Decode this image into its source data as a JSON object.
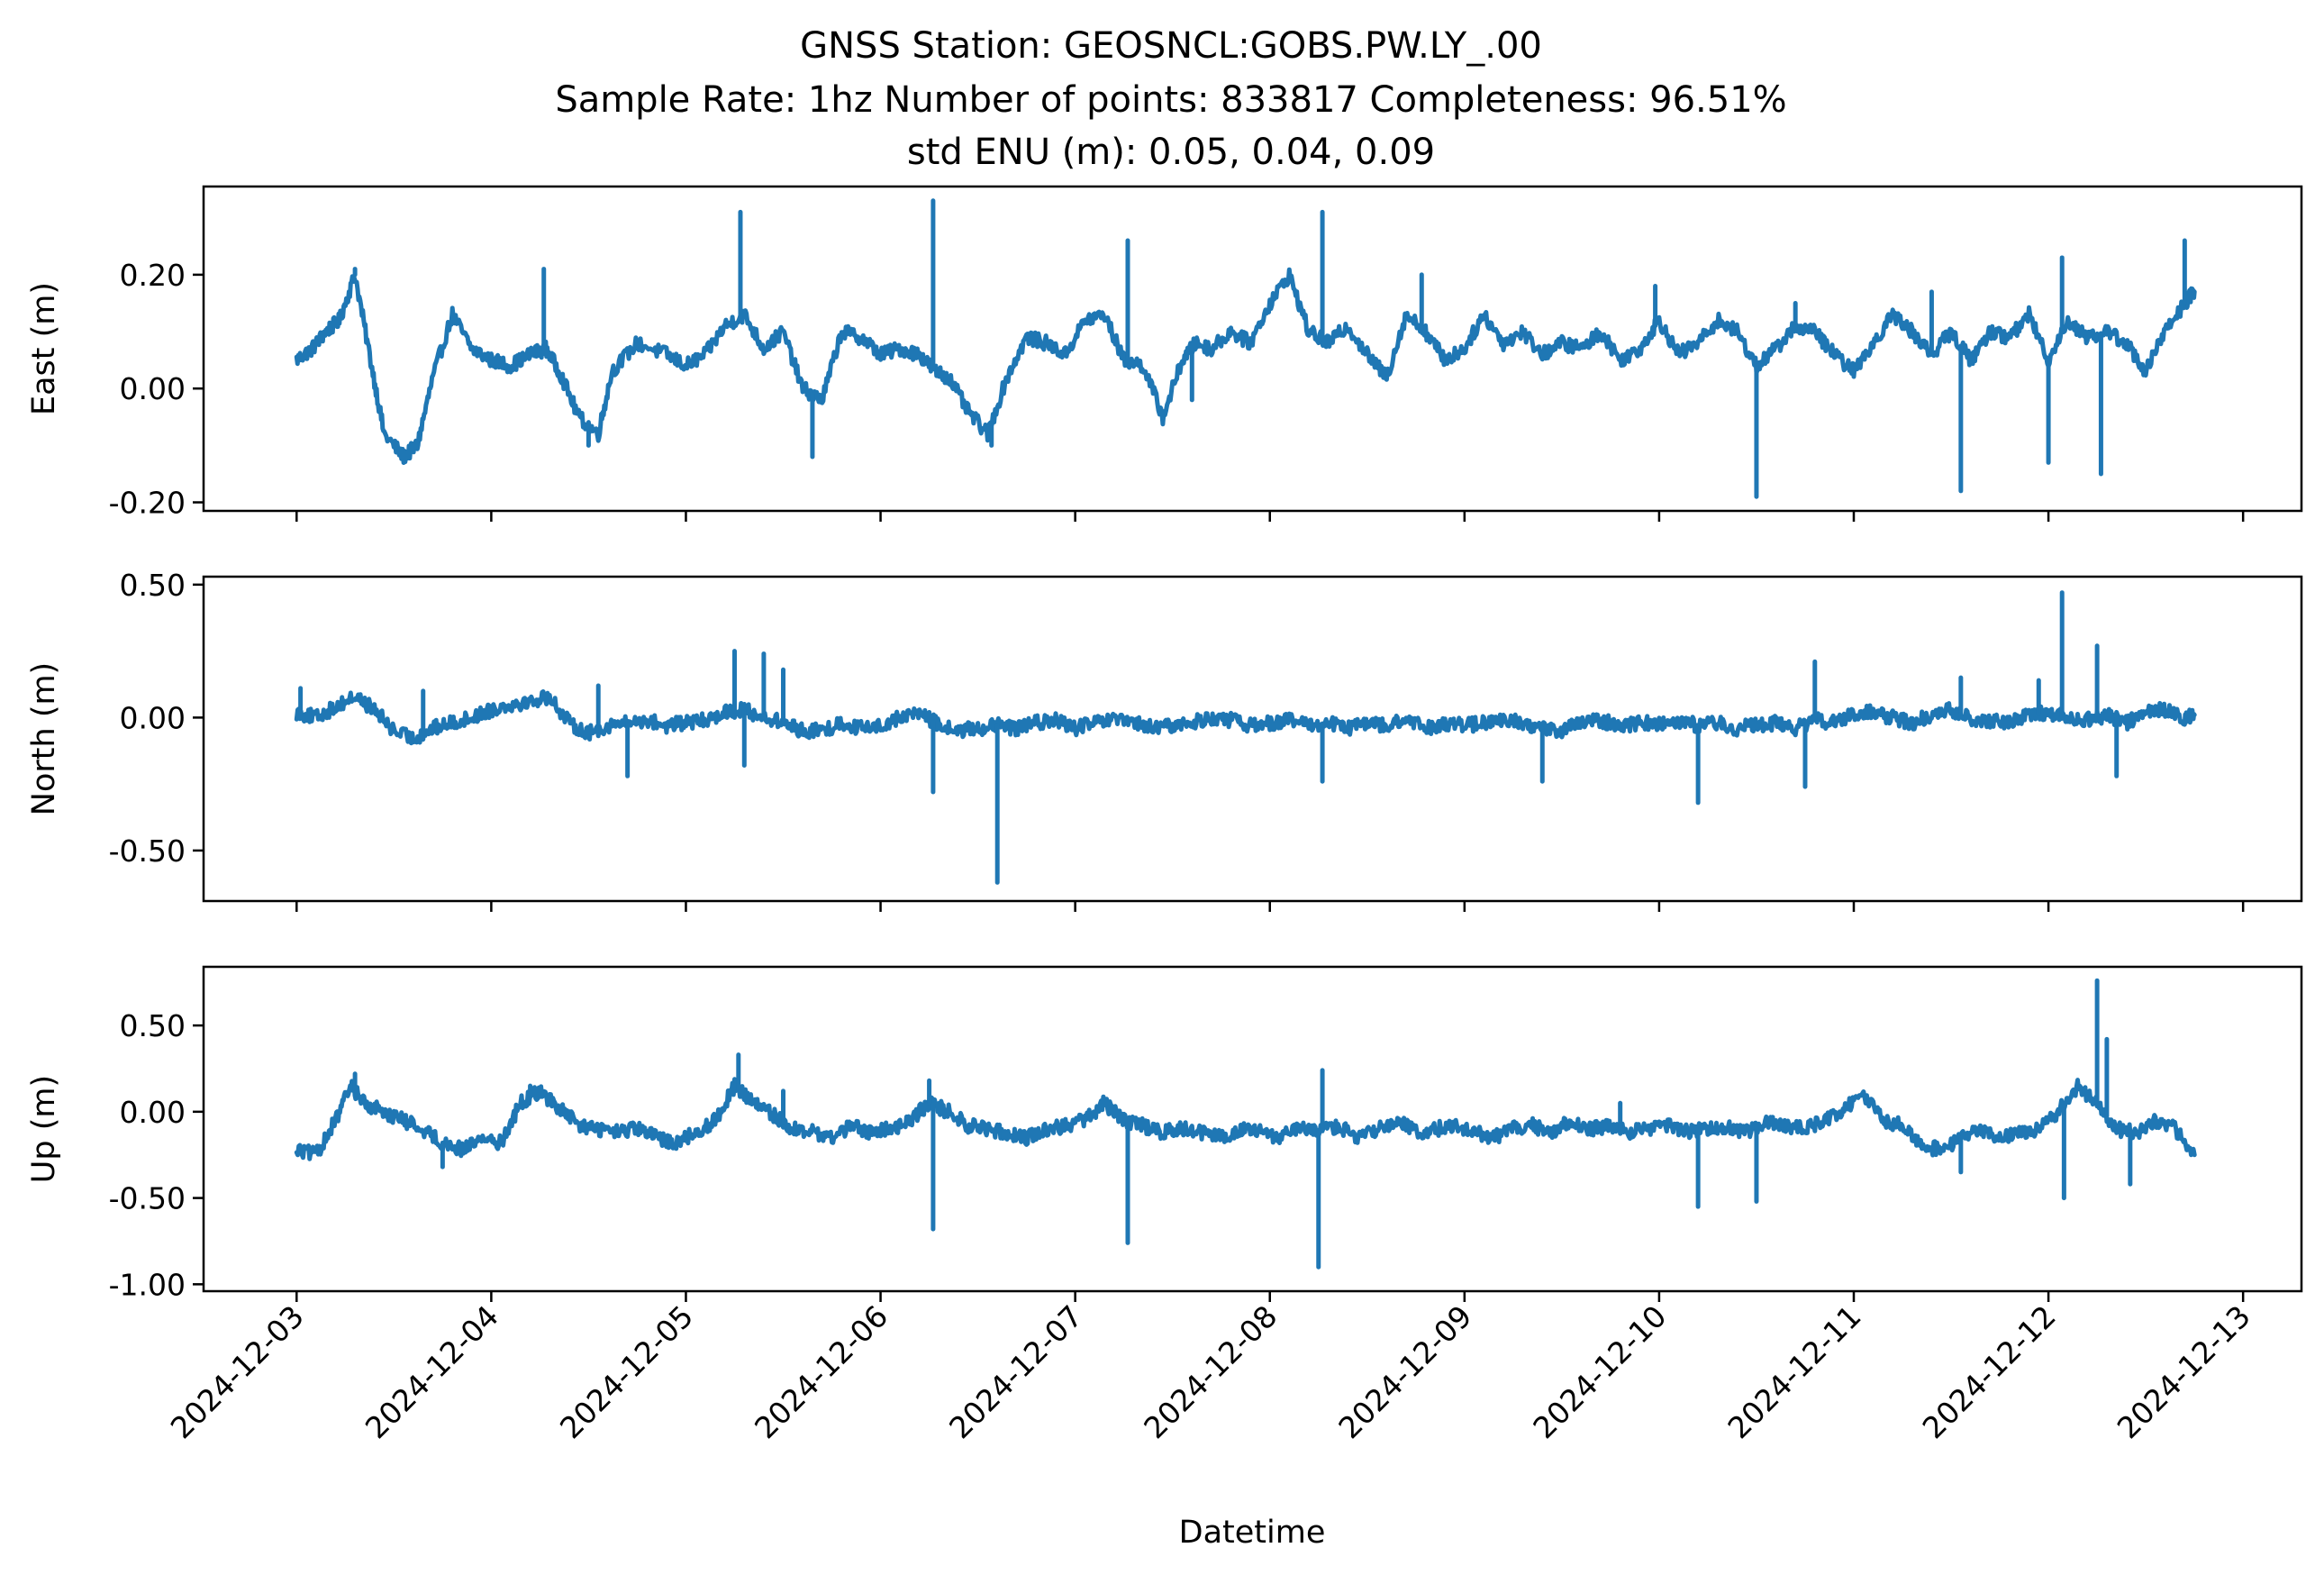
{
  "title_lines": [
    "GNSS Station: GEOSNCL:GOBS.PW.LY_.00",
    "Sample Rate: 1hz   Number of points: 833817    Completeness:  96.51%",
    "std ENU (m):  0.05, 0.04, 0.09"
  ],
  "colors": {
    "series": "#1f77b4",
    "axes": "#000000",
    "background": "#ffffff"
  },
  "chart_data": {
    "type": "line",
    "xlabel": "Datetime",
    "x_ticks": [
      "2024-12-03",
      "2024-12-04",
      "2024-12-05",
      "2024-12-06",
      "2024-12-07",
      "2024-12-08",
      "2024-12-09",
      "2024-12-10",
      "2024-12-11",
      "2024-12-12",
      "2024-12-13"
    ],
    "x_range": [
      "2024-12-02 12:32",
      "2024-12-13 07:12"
    ],
    "x_unit": "days since 2024-12-03 00:00",
    "grid": false,
    "panels": [
      {
        "ylabel": "East (m)",
        "ylim": [
          -0.215,
          0.355
        ],
        "yticks": [
          -0.2,
          0.0,
          0.2
        ],
        "ytick_labels": [
          "-0.20",
          "0.00",
          "0.20"
        ],
        "x_ticks_labeled": false,
        "series": [
          {
            "x": [
              0.0,
              0.08,
              0.15,
              0.22,
              0.3,
              0.38,
              0.45,
              0.55,
              0.62,
              0.7,
              0.8,
              0.9,
              1.0,
              1.1,
              1.2,
              1.28,
              1.35,
              1.45,
              1.55,
              1.62,
              1.75,
              1.9,
              2.0,
              2.1,
              2.2,
              2.3,
              2.4,
              2.5,
              2.6,
              2.7,
              2.8,
              2.9,
              3.0,
              3.1,
              3.2,
              3.28,
              3.35,
              3.45,
              3.55,
              3.65,
              3.75,
              3.85,
              3.95,
              4.05,
              4.15,
              4.25,
              4.35,
              4.45,
              4.55,
              4.62,
              4.7,
              4.8,
              4.9,
              5.0,
              5.1,
              5.2,
              5.3,
              5.4,
              5.5,
              5.6,
              5.7,
              5.8,
              5.9,
              6.0,
              6.1,
              6.2,
              6.3,
              6.4,
              6.5,
              6.6,
              6.7,
              6.8,
              6.9,
              7.0,
              7.1,
              7.2,
              7.3,
              7.4,
              7.5,
              7.6,
              7.7,
              7.8,
              7.9,
              8.0,
              8.1,
              8.2,
              8.3,
              8.4,
              8.5,
              8.6,
              8.7,
              8.8,
              8.9,
              9.0,
              9.1,
              9.2,
              9.3,
              9.4,
              9.5,
              9.6,
              9.7,
              9.75
            ],
            "y": [
              0.05,
              0.07,
              0.1,
              0.12,
              0.2,
              0.05,
              -0.08,
              -0.12,
              -0.1,
              0.02,
              0.13,
              0.07,
              0.05,
              0.04,
              0.06,
              0.07,
              0.03,
              -0.05,
              -0.08,
              0.03,
              0.08,
              0.06,
              0.04,
              0.06,
              0.11,
              0.13,
              0.07,
              0.1,
              0.0,
              -0.02,
              0.1,
              0.09,
              0.06,
              0.07,
              0.06,
              0.03,
              0.02,
              -0.04,
              -0.08,
              0.02,
              0.09,
              0.08,
              0.06,
              0.12,
              0.13,
              0.05,
              0.04,
              -0.05,
              0.05,
              0.08,
              0.07,
              0.1,
              0.08,
              0.15,
              0.2,
              0.1,
              0.08,
              0.11,
              0.06,
              0.02,
              0.13,
              0.1,
              0.05,
              0.07,
              0.13,
              0.08,
              0.1,
              0.06,
              0.08,
              0.07,
              0.1,
              0.05,
              0.07,
              0.12,
              0.06,
              0.08,
              0.12,
              0.1,
              0.04,
              0.07,
              0.11,
              0.1,
              0.06,
              0.03,
              0.08,
              0.13,
              0.1,
              0.06,
              0.1,
              0.05,
              0.1,
              0.09,
              0.13,
              0.05,
              0.12,
              0.09,
              0.1,
              0.08,
              0.03,
              0.1,
              0.15,
              0.17
            ],
            "spikes": [
              {
                "x": 0.3,
                "y": 0.21
              },
              {
                "x": 1.27,
                "y": 0.21
              },
              {
                "x": 1.5,
                "y": -0.1
              },
              {
                "x": 2.28,
                "y": 0.31
              },
              {
                "x": 2.65,
                "y": -0.12
              },
              {
                "x": 3.27,
                "y": 0.33
              },
              {
                "x": 3.57,
                "y": -0.1
              },
              {
                "x": 4.27,
                "y": 0.26
              },
              {
                "x": 4.6,
                "y": -0.02
              },
              {
                "x": 5.27,
                "y": 0.31
              },
              {
                "x": 7.5,
                "y": -0.19
              },
              {
                "x": 8.55,
                "y": -0.18
              },
              {
                "x": 9.0,
                "y": -0.13
              },
              {
                "x": 9.27,
                "y": -0.15
              },
              {
                "x": 9.07,
                "y": 0.23
              },
              {
                "x": 9.7,
                "y": 0.26
              },
              {
                "x": 8.4,
                "y": 0.17
              },
              {
                "x": 7.7,
                "y": 0.15
              },
              {
                "x": 5.78,
                "y": 0.2
              },
              {
                "x": 6.98,
                "y": 0.18
              }
            ]
          }
        ]
      },
      {
        "ylabel": "North (m)",
        "ylim": [
          -0.69,
          0.53
        ],
        "yticks": [
          -0.5,
          0.0,
          0.5
        ],
        "ytick_labels": [
          "-0.50",
          "0.00",
          "0.50"
        ],
        "x_ticks_labeled": false,
        "series": [
          {
            "x": [
              0.0,
              0.1,
              0.2,
              0.3,
              0.4,
              0.5,
              0.6,
              0.7,
              0.8,
              0.9,
              1.0,
              1.1,
              1.2,
              1.3,
              1.4,
              1.5,
              1.6,
              1.7,
              1.8,
              1.9,
              2.0,
              2.1,
              2.2,
              2.3,
              2.4,
              2.5,
              2.6,
              2.7,
              2.8,
              2.9,
              3.0,
              3.1,
              3.2,
              3.3,
              3.4,
              3.5,
              3.6,
              3.7,
              3.8,
              3.9,
              4.0,
              4.1,
              4.2,
              4.3,
              4.4,
              4.5,
              4.6,
              4.7,
              4.8,
              4.9,
              5.0,
              5.1,
              5.2,
              5.3,
              5.4,
              5.5,
              5.6,
              5.7,
              5.8,
              5.9,
              6.0,
              6.1,
              6.2,
              6.3,
              6.4,
              6.5,
              6.6,
              6.7,
              6.8,
              6.9,
              7.0,
              7.1,
              7.2,
              7.3,
              7.4,
              7.5,
              7.6,
              7.7,
              7.8,
              7.9,
              8.0,
              8.1,
              8.2,
              8.3,
              8.4,
              8.5,
              8.6,
              8.7,
              8.8,
              8.9,
              9.0,
              9.1,
              9.2,
              9.3,
              9.4,
              9.5,
              9.6,
              9.7,
              9.75
            ],
            "y": [
              0.02,
              0.0,
              0.04,
              0.08,
              0.03,
              -0.05,
              -0.08,
              -0.04,
              -0.02,
              0.0,
              0.03,
              0.05,
              0.06,
              0.08,
              -0.02,
              -0.06,
              -0.03,
              -0.02,
              -0.01,
              -0.03,
              -0.02,
              -0.01,
              0.02,
              0.03,
              0.0,
              -0.02,
              -0.05,
              -0.05,
              -0.02,
              -0.04,
              -0.03,
              0.0,
              0.02,
              -0.03,
              -0.05,
              -0.04,
              -0.03,
              -0.04,
              -0.02,
              -0.01,
              -0.04,
              -0.02,
              -0.01,
              -0.02,
              -0.04,
              -0.03,
              -0.02,
              0.0,
              -0.01,
              -0.03,
              -0.02,
              -0.01,
              -0.03,
              -0.02,
              -0.04,
              -0.02,
              -0.03,
              -0.01,
              -0.04,
              -0.02,
              -0.03,
              -0.02,
              -0.01,
              -0.02,
              -0.04,
              -0.05,
              -0.02,
              -0.01,
              -0.03,
              -0.02,
              -0.02,
              -0.01,
              -0.03,
              -0.02,
              -0.04,
              -0.03,
              -0.02,
              -0.04,
              -0.01,
              -0.02,
              0.01,
              0.02,
              0.0,
              -0.02,
              0.01,
              0.03,
              0.0,
              -0.02,
              -0.01,
              0.01,
              0.02,
              0.0,
              -0.01,
              0.01,
              -0.02,
              0.02,
              0.03,
              0.0,
              0.01
            ],
            "spikes": [
              {
                "x": 0.02,
                "y": 0.11
              },
              {
                "x": 0.65,
                "y": 0.1
              },
              {
                "x": 1.55,
                "y": 0.12
              },
              {
                "x": 1.7,
                "y": -0.22
              },
              {
                "x": 2.25,
                "y": 0.25
              },
              {
                "x": 2.4,
                "y": 0.24
              },
              {
                "x": 2.5,
                "y": 0.18
              },
              {
                "x": 2.3,
                "y": -0.18
              },
              {
                "x": 3.27,
                "y": -0.28
              },
              {
                "x": 3.6,
                "y": -0.62
              },
              {
                "x": 5.27,
                "y": -0.24
              },
              {
                "x": 6.4,
                "y": -0.24
              },
              {
                "x": 7.2,
                "y": -0.32
              },
              {
                "x": 7.75,
                "y": -0.26
              },
              {
                "x": 7.8,
                "y": 0.21
              },
              {
                "x": 9.07,
                "y": 0.47
              },
              {
                "x": 9.25,
                "y": 0.27
              },
              {
                "x": 9.35,
                "y": -0.22
              },
              {
                "x": 8.55,
                "y": 0.15
              },
              {
                "x": 8.95,
                "y": 0.14
              },
              {
                "x": 0.72,
                "y": -0.05
              }
            ]
          }
        ]
      },
      {
        "ylabel": "Up (m)",
        "ylim": [
          -1.04,
          0.84
        ],
        "yticks": [
          -1.0,
          -0.5,
          0.0,
          0.5
        ],
        "ytick_labels": [
          "-1.00",
          "-0.50",
          "0.00",
          "0.50"
        ],
        "x_ticks_labeled": true,
        "series": [
          {
            "x": [
              0.0,
              0.1,
              0.2,
              0.28,
              0.35,
              0.45,
              0.55,
              0.65,
              0.75,
              0.85,
              0.95,
              1.05,
              1.15,
              1.25,
              1.35,
              1.45,
              1.55,
              1.65,
              1.75,
              1.85,
              1.95,
              2.05,
              2.15,
              2.25,
              2.35,
              2.45,
              2.55,
              2.65,
              2.75,
              2.85,
              2.95,
              3.05,
              3.15,
              3.25,
              3.35,
              3.45,
              3.55,
              3.65,
              3.75,
              3.85,
              3.95,
              4.05,
              4.15,
              4.25,
              4.35,
              4.45,
              4.55,
              4.65,
              4.75,
              4.85,
              4.95,
              5.05,
              5.15,
              5.25,
              5.35,
              5.45,
              5.55,
              5.65,
              5.75,
              5.85,
              5.95,
              6.05,
              6.15,
              6.25,
              6.35,
              6.45,
              6.55,
              6.65,
              6.75,
              6.85,
              6.95,
              7.05,
              7.15,
              7.25,
              7.35,
              7.45,
              7.55,
              7.65,
              7.75,
              7.85,
              7.95,
              8.05,
              8.15,
              8.25,
              8.35,
              8.45,
              8.55,
              8.65,
              8.75,
              8.85,
              8.95,
              9.05,
              9.15,
              9.25,
              9.35,
              9.45,
              9.55,
              9.65,
              9.75
            ],
            "y": [
              -0.22,
              -0.25,
              -0.05,
              0.15,
              0.05,
              0.0,
              -0.05,
              -0.1,
              -0.18,
              -0.22,
              -0.15,
              -0.18,
              0.05,
              0.12,
              0.02,
              -0.08,
              -0.1,
              -0.12,
              -0.1,
              -0.15,
              -0.18,
              -0.12,
              -0.05,
              0.15,
              0.05,
              -0.02,
              -0.1,
              -0.12,
              -0.15,
              -0.08,
              -0.12,
              -0.1,
              -0.05,
              0.05,
              0.0,
              -0.08,
              -0.1,
              -0.12,
              -0.15,
              -0.1,
              -0.08,
              -0.05,
              0.05,
              -0.05,
              -0.08,
              -0.12,
              -0.1,
              -0.12,
              -0.15,
              -0.1,
              -0.12,
              -0.15,
              -0.1,
              -0.12,
              -0.08,
              -0.15,
              -0.1,
              -0.05,
              -0.12,
              -0.1,
              -0.08,
              -0.12,
              -0.15,
              -0.1,
              -0.08,
              -0.12,
              -0.05,
              -0.1,
              -0.08,
              -0.12,
              -0.1,
              -0.08,
              -0.12,
              -0.1,
              -0.08,
              -0.12,
              -0.05,
              -0.08,
              -0.1,
              -0.05,
              0.02,
              0.1,
              -0.05,
              -0.08,
              -0.2,
              -0.22,
              -0.15,
              -0.1,
              -0.15,
              -0.12,
              -0.1,
              0.0,
              0.15,
              0.05,
              -0.1,
              -0.12,
              -0.05,
              -0.1,
              -0.25
            ],
            "spikes": [
              {
                "x": 0.3,
                "y": 0.22
              },
              {
                "x": 0.75,
                "y": -0.32
              },
              {
                "x": 1.2,
                "y": 0.15
              },
              {
                "x": 2.27,
                "y": 0.33
              },
              {
                "x": 2.5,
                "y": 0.12
              },
              {
                "x": 3.27,
                "y": -0.68
              },
              {
                "x": 3.25,
                "y": 0.18
              },
              {
                "x": 4.27,
                "y": -0.76
              },
              {
                "x": 5.25,
                "y": -0.9
              },
              {
                "x": 5.27,
                "y": 0.24
              },
              {
                "x": 7.2,
                "y": -0.55
              },
              {
                "x": 7.5,
                "y": -0.52
              },
              {
                "x": 9.08,
                "y": -0.5
              },
              {
                "x": 9.25,
                "y": 0.76
              },
              {
                "x": 9.3,
                "y": 0.42
              },
              {
                "x": 9.42,
                "y": -0.42
              },
              {
                "x": 8.55,
                "y": -0.35
              },
              {
                "x": 6.8,
                "y": 0.05
              }
            ]
          }
        ]
      }
    ]
  }
}
